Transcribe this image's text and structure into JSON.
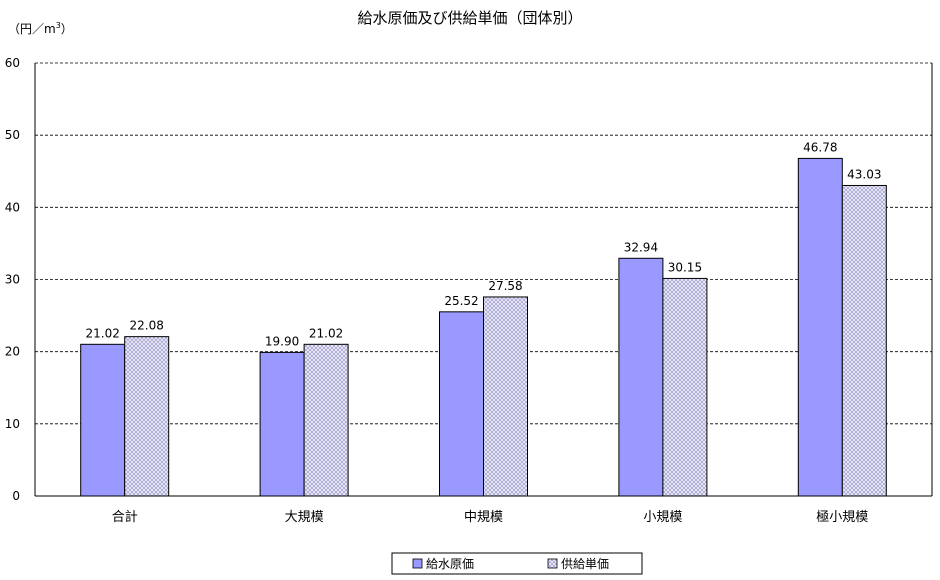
{
  "chart_data": {
    "type": "bar",
    "title": "給水原価及び供給単価（団体別）",
    "unit_label_pre": "（円／m",
    "unit_label_sup": "3",
    "unit_label_post": "）",
    "categories": [
      "合計",
      "大規模",
      "中規模",
      "小規模",
      "極小規模"
    ],
    "series": [
      {
        "name": "給水原価",
        "values": [
          21.02,
          19.9,
          25.52,
          32.94,
          46.78
        ],
        "labels": [
          "21.02",
          "19.90",
          "25.52",
          "32.94",
          "46.78"
        ],
        "color": "#9999ff"
      },
      {
        "name": "供給単価",
        "values": [
          22.08,
          21.02,
          27.58,
          30.15,
          43.03
        ],
        "labels": [
          "22.08",
          "21.02",
          "27.58",
          "30.15",
          "43.03"
        ],
        "color": "#ccccff"
      }
    ],
    "y_ticks": [
      "0",
      "10",
      "20",
      "30",
      "40",
      "50",
      "60"
    ],
    "ylim": [
      0,
      60
    ],
    "grid": "dashed horizontal",
    "legend_position": "bottom-center"
  }
}
